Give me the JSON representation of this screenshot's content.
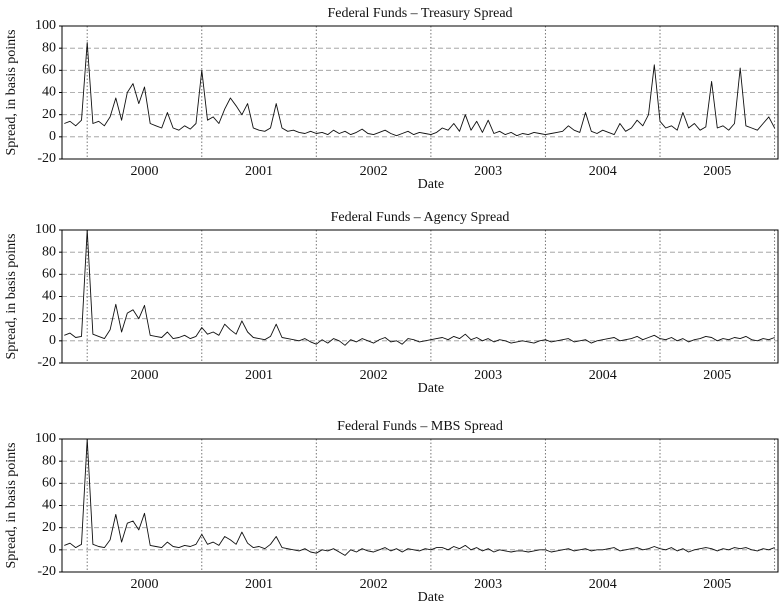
{
  "chart_data": [
    {
      "type": "line",
      "title": "Federal Funds – Treasury Spread",
      "ylabel": "Spread, in basis points",
      "xlabel": "Date",
      "xlim": [
        1999.78,
        2006.03
      ],
      "ylim": [
        -20,
        100
      ],
      "yticks": [
        -20,
        0,
        20,
        40,
        60,
        80,
        100
      ],
      "grid": true,
      "xticks": [
        {
          "value": 2000.5,
          "label": "2000"
        },
        {
          "value": 2001.5,
          "label": "2001"
        },
        {
          "value": 2002.5,
          "label": "2002"
        },
        {
          "value": 2003.5,
          "label": "2003"
        },
        {
          "value": 2004.5,
          "label": "2004"
        },
        {
          "value": 2005.5,
          "label": "2005"
        }
      ],
      "xminorticks": [
        2000,
        2001,
        2002,
        2003,
        2004,
        2005,
        2006
      ],
      "x": [
        1999.8,
        1999.85,
        1999.9,
        1999.95,
        2000,
        2000.05,
        2000.1,
        2000.15,
        2000.2,
        2000.25,
        2000.3,
        2000.35,
        2000.4,
        2000.45,
        2000.5,
        2000.55,
        2000.6,
        2000.65,
        2000.7,
        2000.75,
        2000.8,
        2000.85,
        2000.9,
        2000.95,
        2001,
        2001.05,
        2001.1,
        2001.15,
        2001.2,
        2001.25,
        2001.3,
        2001.35,
        2001.4,
        2001.45,
        2001.5,
        2001.55,
        2001.6,
        2001.65,
        2001.7,
        2001.75,
        2001.8,
        2001.85,
        2001.9,
        2001.95,
        2002,
        2002.05,
        2002.1,
        2002.15,
        2002.2,
        2002.25,
        2002.3,
        2002.35,
        2002.4,
        2002.45,
        2002.5,
        2002.55,
        2002.6,
        2002.65,
        2002.7,
        2002.75,
        2002.8,
        2002.85,
        2002.9,
        2002.95,
        2003,
        2003.05,
        2003.1,
        2003.15,
        2003.2,
        2003.25,
        2003.3,
        2003.35,
        2003.4,
        2003.45,
        2003.5,
        2003.55,
        2003.6,
        2003.65,
        2003.7,
        2003.75,
        2003.8,
        2003.85,
        2003.9,
        2003.95,
        2004,
        2004.05,
        2004.1,
        2004.15,
        2004.2,
        2004.25,
        2004.3,
        2004.35,
        2004.4,
        2004.45,
        2004.5,
        2004.55,
        2004.6,
        2004.65,
        2004.7,
        2004.75,
        2004.8,
        2004.85,
        2004.9,
        2004.95,
        2005,
        2005.05,
        2005.1,
        2005.15,
        2005.2,
        2005.25,
        2005.3,
        2005.35,
        2005.4,
        2005.45,
        2005.5,
        2005.55,
        2005.6,
        2005.65,
        2005.7,
        2005.75,
        2005.8,
        2005.85,
        2005.9,
        2005.95,
        2006
      ],
      "color": "#111111",
      "values": [
        12,
        14,
        10,
        15,
        85,
        12,
        14,
        10,
        18,
        35,
        15,
        40,
        48,
        30,
        45,
        12,
        10,
        8,
        22,
        8,
        6,
        10,
        7,
        12,
        60,
        15,
        18,
        12,
        25,
        35,
        28,
        20,
        30,
        8,
        6,
        5,
        8,
        30,
        8,
        5,
        6,
        4,
        3,
        5,
        3,
        4,
        2,
        6,
        3,
        5,
        2,
        4,
        7,
        3,
        2,
        4,
        6,
        3,
        1,
        3,
        5,
        2,
        4,
        3,
        2,
        4,
        8,
        6,
        12,
        5,
        20,
        6,
        14,
        4,
        15,
        3,
        5,
        2,
        4,
        1,
        3,
        2,
        4,
        3,
        2,
        3,
        4,
        5,
        10,
        6,
        4,
        22,
        5,
        3,
        6,
        4,
        2,
        12,
        5,
        8,
        15,
        10,
        20,
        65,
        14,
        8,
        10,
        6,
        22,
        8,
        12,
        6,
        9,
        50,
        8,
        10,
        6,
        12,
        62,
        10,
        8,
        6,
        12,
        18,
        8
      ]
    },
    {
      "type": "line",
      "title": "Federal Funds – Agency Spread",
      "ylabel": "Spread, in basis points",
      "xlabel": "Date",
      "xlim": [
        1999.78,
        2006.03
      ],
      "ylim": [
        -20,
        100
      ],
      "yticks": [
        -20,
        0,
        20,
        40,
        60,
        80,
        100
      ],
      "grid": true,
      "xticks": [
        {
          "value": 2000.5,
          "label": "2000"
        },
        {
          "value": 2001.5,
          "label": "2001"
        },
        {
          "value": 2002.5,
          "label": "2002"
        },
        {
          "value": 2003.5,
          "label": "2003"
        },
        {
          "value": 2004.5,
          "label": "2004"
        },
        {
          "value": 2005.5,
          "label": "2005"
        }
      ],
      "xminorticks": [
        2000,
        2001,
        2002,
        2003,
        2004,
        2005,
        2006
      ],
      "x": [
        1999.8,
        1999.85,
        1999.9,
        1999.95,
        2000,
        2000.05,
        2000.1,
        2000.15,
        2000.2,
        2000.25,
        2000.3,
        2000.35,
        2000.4,
        2000.45,
        2000.5,
        2000.55,
        2000.6,
        2000.65,
        2000.7,
        2000.75,
        2000.8,
        2000.85,
        2000.9,
        2000.95,
        2001,
        2001.05,
        2001.1,
        2001.15,
        2001.2,
        2001.25,
        2001.3,
        2001.35,
        2001.4,
        2001.45,
        2001.5,
        2001.55,
        2001.6,
        2001.65,
        2001.7,
        2001.75,
        2001.8,
        2001.85,
        2001.9,
        2001.95,
        2002,
        2002.05,
        2002.1,
        2002.15,
        2002.2,
        2002.25,
        2002.3,
        2002.35,
        2002.4,
        2002.45,
        2002.5,
        2002.55,
        2002.6,
        2002.65,
        2002.7,
        2002.75,
        2002.8,
        2002.85,
        2002.9,
        2002.95,
        2003,
        2003.05,
        2003.1,
        2003.15,
        2003.2,
        2003.25,
        2003.3,
        2003.35,
        2003.4,
        2003.45,
        2003.5,
        2003.55,
        2003.6,
        2003.65,
        2003.7,
        2003.75,
        2003.8,
        2003.85,
        2003.9,
        2003.95,
        2004,
        2004.05,
        2004.1,
        2004.15,
        2004.2,
        2004.25,
        2004.3,
        2004.35,
        2004.4,
        2004.45,
        2004.5,
        2004.55,
        2004.6,
        2004.65,
        2004.7,
        2004.75,
        2004.8,
        2004.85,
        2004.9,
        2004.95,
        2005,
        2005.05,
        2005.1,
        2005.15,
        2005.2,
        2005.25,
        2005.3,
        2005.35,
        2005.4,
        2005.45,
        2005.5,
        2005.55,
        2005.6,
        2005.65,
        2005.7,
        2005.75,
        2005.8,
        2005.85,
        2005.9,
        2005.95,
        2006
      ],
      "color": "#111111",
      "values": [
        5,
        7,
        3,
        4,
        100,
        6,
        4,
        2,
        10,
        33,
        8,
        25,
        28,
        20,
        32,
        5,
        4,
        3,
        8,
        2,
        3,
        5,
        2,
        4,
        12,
        6,
        8,
        5,
        15,
        10,
        6,
        18,
        8,
        3,
        2,
        1,
        4,
        15,
        3,
        2,
        1,
        0,
        2,
        -1,
        -3,
        1,
        -2,
        2,
        0,
        -4,
        1,
        -1,
        2,
        0,
        -2,
        1,
        3,
        -1,
        0,
        -3,
        2,
        1,
        -1,
        0,
        1,
        2,
        3,
        1,
        4,
        2,
        6,
        1,
        3,
        0,
        2,
        -1,
        1,
        0,
        -2,
        -1,
        0,
        -1,
        -2,
        0,
        1,
        -1,
        0,
        1,
        2,
        -1,
        0,
        1,
        -2,
        0,
        1,
        2,
        3,
        0,
        1,
        2,
        4,
        1,
        3,
        5,
        2,
        1,
        3,
        0,
        2,
        -1,
        1,
        2,
        4,
        3,
        0,
        2,
        1,
        3,
        2,
        4,
        1,
        0,
        2,
        1,
        3
      ]
    },
    {
      "type": "line",
      "title": "Federal Funds – MBS Spread",
      "ylabel": "Spread, in basis points",
      "xlabel": "Date",
      "xlim": [
        1999.78,
        2006.03
      ],
      "ylim": [
        -20,
        100
      ],
      "yticks": [
        -20,
        0,
        20,
        40,
        60,
        80,
        100
      ],
      "grid": true,
      "xticks": [
        {
          "value": 2000.5,
          "label": "2000"
        },
        {
          "value": 2001.5,
          "label": "2001"
        },
        {
          "value": 2002.5,
          "label": "2002"
        },
        {
          "value": 2003.5,
          "label": "2003"
        },
        {
          "value": 2004.5,
          "label": "2004"
        },
        {
          "value": 2005.5,
          "label": "2005"
        }
      ],
      "xminorticks": [
        2000,
        2001,
        2002,
        2003,
        2004,
        2005,
        2006
      ],
      "x": [
        1999.8,
        1999.85,
        1999.9,
        1999.95,
        2000,
        2000.05,
        2000.1,
        2000.15,
        2000.2,
        2000.25,
        2000.3,
        2000.35,
        2000.4,
        2000.45,
        2000.5,
        2000.55,
        2000.6,
        2000.65,
        2000.7,
        2000.75,
        2000.8,
        2000.85,
        2000.9,
        2000.95,
        2001,
        2001.05,
        2001.1,
        2001.15,
        2001.2,
        2001.25,
        2001.3,
        2001.35,
        2001.4,
        2001.45,
        2001.5,
        2001.55,
        2001.6,
        2001.65,
        2001.7,
        2001.75,
        2001.8,
        2001.85,
        2001.9,
        2001.95,
        2002,
        2002.05,
        2002.1,
        2002.15,
        2002.2,
        2002.25,
        2002.3,
        2002.35,
        2002.4,
        2002.45,
        2002.5,
        2002.55,
        2002.6,
        2002.65,
        2002.7,
        2002.75,
        2002.8,
        2002.85,
        2002.9,
        2002.95,
        2003,
        2003.05,
        2003.1,
        2003.15,
        2003.2,
        2003.25,
        2003.3,
        2003.35,
        2003.4,
        2003.45,
        2003.5,
        2003.55,
        2003.6,
        2003.65,
        2003.7,
        2003.75,
        2003.8,
        2003.85,
        2003.9,
        2003.95,
        2004,
        2004.05,
        2004.1,
        2004.15,
        2004.2,
        2004.25,
        2004.3,
        2004.35,
        2004.4,
        2004.45,
        2004.5,
        2004.55,
        2004.6,
        2004.65,
        2004.7,
        2004.75,
        2004.8,
        2004.85,
        2004.9,
        2004.95,
        2005,
        2005.05,
        2005.1,
        2005.15,
        2005.2,
        2005.25,
        2005.3,
        2005.35,
        2005.4,
        2005.45,
        2005.5,
        2005.55,
        2005.6,
        2005.65,
        2005.7,
        2005.75,
        2005.8,
        2005.85,
        2005.9,
        2005.95,
        2006
      ],
      "color": "#111111",
      "values": [
        4,
        6,
        2,
        5,
        100,
        5,
        3,
        2,
        9,
        32,
        7,
        24,
        26,
        18,
        33,
        4,
        3,
        2,
        7,
        3,
        2,
        4,
        3,
        5,
        14,
        5,
        7,
        4,
        12,
        9,
        5,
        16,
        6,
        2,
        3,
        1,
        5,
        12,
        2,
        1,
        0,
        -1,
        1,
        -2,
        -3,
        0,
        -1,
        1,
        -2,
        -5,
        0,
        -2,
        1,
        -1,
        -2,
        0,
        2,
        -1,
        1,
        -2,
        1,
        0,
        -1,
        1,
        0,
        2,
        2,
        0,
        3,
        1,
        4,
        0,
        2,
        -1,
        1,
        -2,
        0,
        -1,
        -2,
        -1,
        -1,
        -2,
        -1,
        0,
        0,
        -2,
        -1,
        0,
        1,
        -1,
        0,
        1,
        -1,
        0,
        0,
        1,
        2,
        -1,
        0,
        1,
        2,
        0,
        1,
        3,
        1,
        0,
        2,
        -1,
        1,
        -2,
        0,
        1,
        2,
        1,
        -1,
        1,
        0,
        2,
        1,
        2,
        0,
        -1,
        1,
        0,
        2
      ]
    }
  ]
}
